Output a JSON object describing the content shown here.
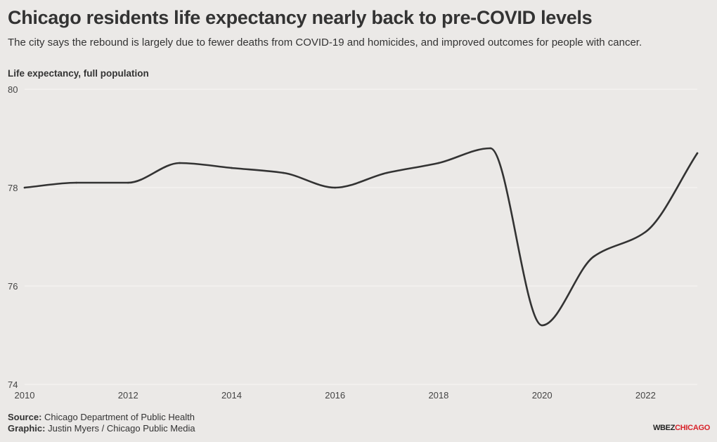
{
  "title": "Chicago residents life expectancy nearly back to pre-COVID levels",
  "subtitle": "The city says the rebound is largely due to fewer deaths from COVID-19 and homicides, and improved outcomes for people with cancer.",
  "footer": {
    "source_label": "Source:",
    "source": "Chicago Department of Public Health",
    "graphic_label": "Graphic:",
    "graphic": "Justin Myers / Chicago Public Media"
  },
  "logo": {
    "part1": "WBEZ",
    "part2": "CHICAGO"
  },
  "colors": {
    "line": "#333333",
    "grid": "#f5f4f2",
    "background": "#ebe9e7",
    "logo_accent": "#d8232a"
  },
  "chart_data": {
    "type": "line",
    "title": "Chicago residents life expectancy nearly back to pre-COVID levels",
    "subtitle": "The city says the rebound is largely due to fewer deaths from COVID-19 and homicides, and improved outcomes for people with cancer.",
    "ylabel": "Life expectancy, full population",
    "xlabel": "",
    "x": [
      2010,
      2011,
      2012,
      2013,
      2014,
      2015,
      2016,
      2017,
      2018,
      2019,
      2020,
      2021,
      2022,
      2023
    ],
    "series": [
      {
        "values": [
          78.0,
          78.1,
          78.1,
          78.5,
          78.4,
          78.3,
          78.0,
          78.3,
          78.5,
          78.8,
          75.2,
          76.6,
          77.1,
          78.7
        ]
      }
    ],
    "xlim": [
      2010,
      2023
    ],
    "ylim": [
      74,
      80
    ],
    "x_ticks": [
      "2010",
      "2012",
      "2014",
      "2016",
      "2018",
      "2020",
      "2022"
    ],
    "y_ticks": [
      "74",
      "76",
      "78",
      "80"
    ],
    "grid": true,
    "legend": "none"
  }
}
